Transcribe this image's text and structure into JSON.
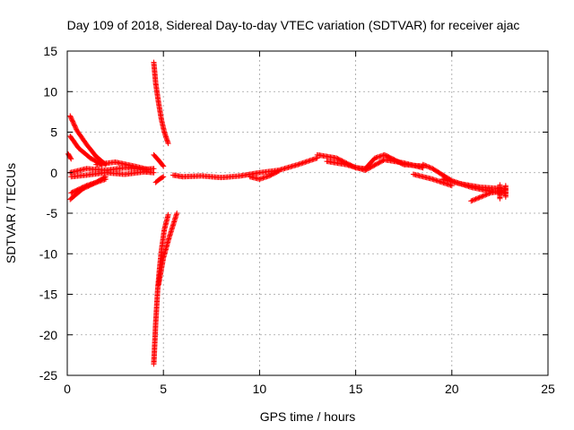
{
  "chart_data": {
    "type": "scatter",
    "title": "Day 109 of 2018, Sidereal Day-to-day VTEC variation (SDTVAR) for receiver ajac",
    "xlabel": "GPS time / hours",
    "ylabel": "SDTVAR / TECUs",
    "xlim": [
      0,
      25
    ],
    "ylim": [
      -25,
      15
    ],
    "xticks": [
      0,
      5,
      10,
      15,
      20,
      25
    ],
    "yticks": [
      -25,
      -20,
      -15,
      -10,
      -5,
      0,
      5,
      10,
      15
    ],
    "xtick_labels": [
      "0",
      "5",
      "10",
      "15",
      "20",
      "25"
    ],
    "ytick_labels": [
      "-25",
      "-20",
      "-15",
      "-10",
      "-5",
      "0",
      "5",
      "10",
      "15"
    ],
    "grid": true,
    "marker": "+",
    "series": [
      {
        "name": "SDTVAR",
        "color": "#ff0000",
        "tracks": [
          {
            "x": [
              0.15,
              0.5,
              1.0,
              1.5,
              2.0
            ],
            "y": [
              7.0,
              5.2,
              3.5,
              2.0,
              1.0
            ]
          },
          {
            "x": [
              0.15,
              0.6,
              1.2,
              1.8
            ],
            "y": [
              4.5,
              3.0,
              1.8,
              1.0
            ]
          },
          {
            "x": [
              0.15,
              1.0,
              2.0,
              3.0,
              4.0,
              4.5
            ],
            "y": [
              0.0,
              0.5,
              0.3,
              0.6,
              0.4,
              0.5
            ]
          },
          {
            "x": [
              0.2,
              1.0,
              2.0,
              3.0,
              4.0,
              4.5
            ],
            "y": [
              -0.5,
              -0.3,
              0.0,
              -0.2,
              0.1,
              0.0
            ]
          },
          {
            "x": [
              0.15,
              0.8,
              1.5,
              2.0
            ],
            "y": [
              -3.3,
              -2.0,
              -1.2,
              -0.8
            ]
          },
          {
            "x": [
              0.2,
              1.0,
              1.5,
              2.0
            ],
            "y": [
              -2.5,
              -1.6,
              -1.2,
              -0.5
            ]
          },
          {
            "x": [
              1.5,
              2.5,
              3.5,
              4.2
            ],
            "y": [
              1.0,
              1.3,
              0.8,
              0.4
            ]
          },
          {
            "x": [
              0.05,
              0.2
            ],
            "y": [
              2.3,
              1.7
            ]
          },
          {
            "x": [
              4.5,
              4.6,
              4.75,
              4.9,
              5.05,
              5.25
            ],
            "y": [
              13.6,
              11.0,
              8.6,
              6.5,
              5.0,
              3.6
            ]
          },
          {
            "x": [
              4.5,
              4.6,
              4.7,
              4.8,
              4.9,
              5.05,
              5.25
            ],
            "y": [
              -23.6,
              -18.5,
              -14.5,
              -11.8,
              -9.5,
              -7.0,
              -5.2
            ]
          },
          {
            "x": [
              4.75,
              5.0,
              5.3,
              5.5,
              5.7
            ],
            "y": [
              -13.8,
              -10.5,
              -8.0,
              -6.5,
              -5.0
            ]
          },
          {
            "x": [
              4.5,
              4.8,
              5.0
            ],
            "y": [
              2.2,
              1.4,
              0.8
            ]
          },
          {
            "x": [
              4.6,
              4.8,
              5.0
            ],
            "y": [
              -1.2,
              -0.8,
              -0.5
            ]
          },
          {
            "x": [
              5.5,
              6.0,
              7.0,
              8.0,
              9.0,
              10.0,
              11.0,
              12.0,
              13.0
            ],
            "y": [
              -0.3,
              -0.5,
              -0.4,
              -0.6,
              -0.4,
              0.0,
              0.3,
              1.0,
              1.8
            ]
          },
          {
            "x": [
              9.5,
              10.0,
              10.5,
              11.0
            ],
            "y": [
              -0.5,
              -0.8,
              -0.4,
              0.2
            ]
          },
          {
            "x": [
              13.0,
              14.0,
              15.0,
              15.5,
              16.0,
              16.5,
              17.0,
              17.5,
              18.0,
              18.5
            ],
            "y": [
              2.2,
              1.8,
              0.6,
              0.5,
              1.8,
              2.2,
              1.6,
              1.0,
              0.9,
              0.8
            ]
          },
          {
            "x": [
              13.5,
              14.5,
              15.5,
              16.5,
              17.5,
              18.5
            ],
            "y": [
              1.4,
              1.0,
              0.3,
              1.6,
              1.2,
              0.6
            ]
          },
          {
            "x": [
              18.5,
              19.0,
              20.0,
              21.0,
              22.0,
              22.8
            ],
            "y": [
              1.0,
              0.5,
              -1.0,
              -1.8,
              -2.3,
              -2.5
            ]
          },
          {
            "x": [
              18.0,
              19.0,
              20.0
            ],
            "y": [
              -0.2,
              -0.8,
              -1.6
            ]
          },
          {
            "x": [
              19.5,
              20.5,
              21.5,
              22.8
            ],
            "y": [
              -0.8,
              -1.4,
              -1.8,
              -2.0
            ]
          },
          {
            "x": [
              21.0,
              21.5,
              22.0,
              22.8
            ],
            "y": [
              -3.5,
              -3.0,
              -2.5,
              -2.2
            ]
          },
          {
            "x": [
              22.5,
              22.5,
              22.5
            ],
            "y": [
              -1.5,
              -2.5,
              -3.2
            ]
          },
          {
            "x": [
              22.8,
              22.8,
              22.8
            ],
            "y": [
              -1.6,
              -2.4,
              -3.0
            ]
          }
        ]
      }
    ]
  }
}
